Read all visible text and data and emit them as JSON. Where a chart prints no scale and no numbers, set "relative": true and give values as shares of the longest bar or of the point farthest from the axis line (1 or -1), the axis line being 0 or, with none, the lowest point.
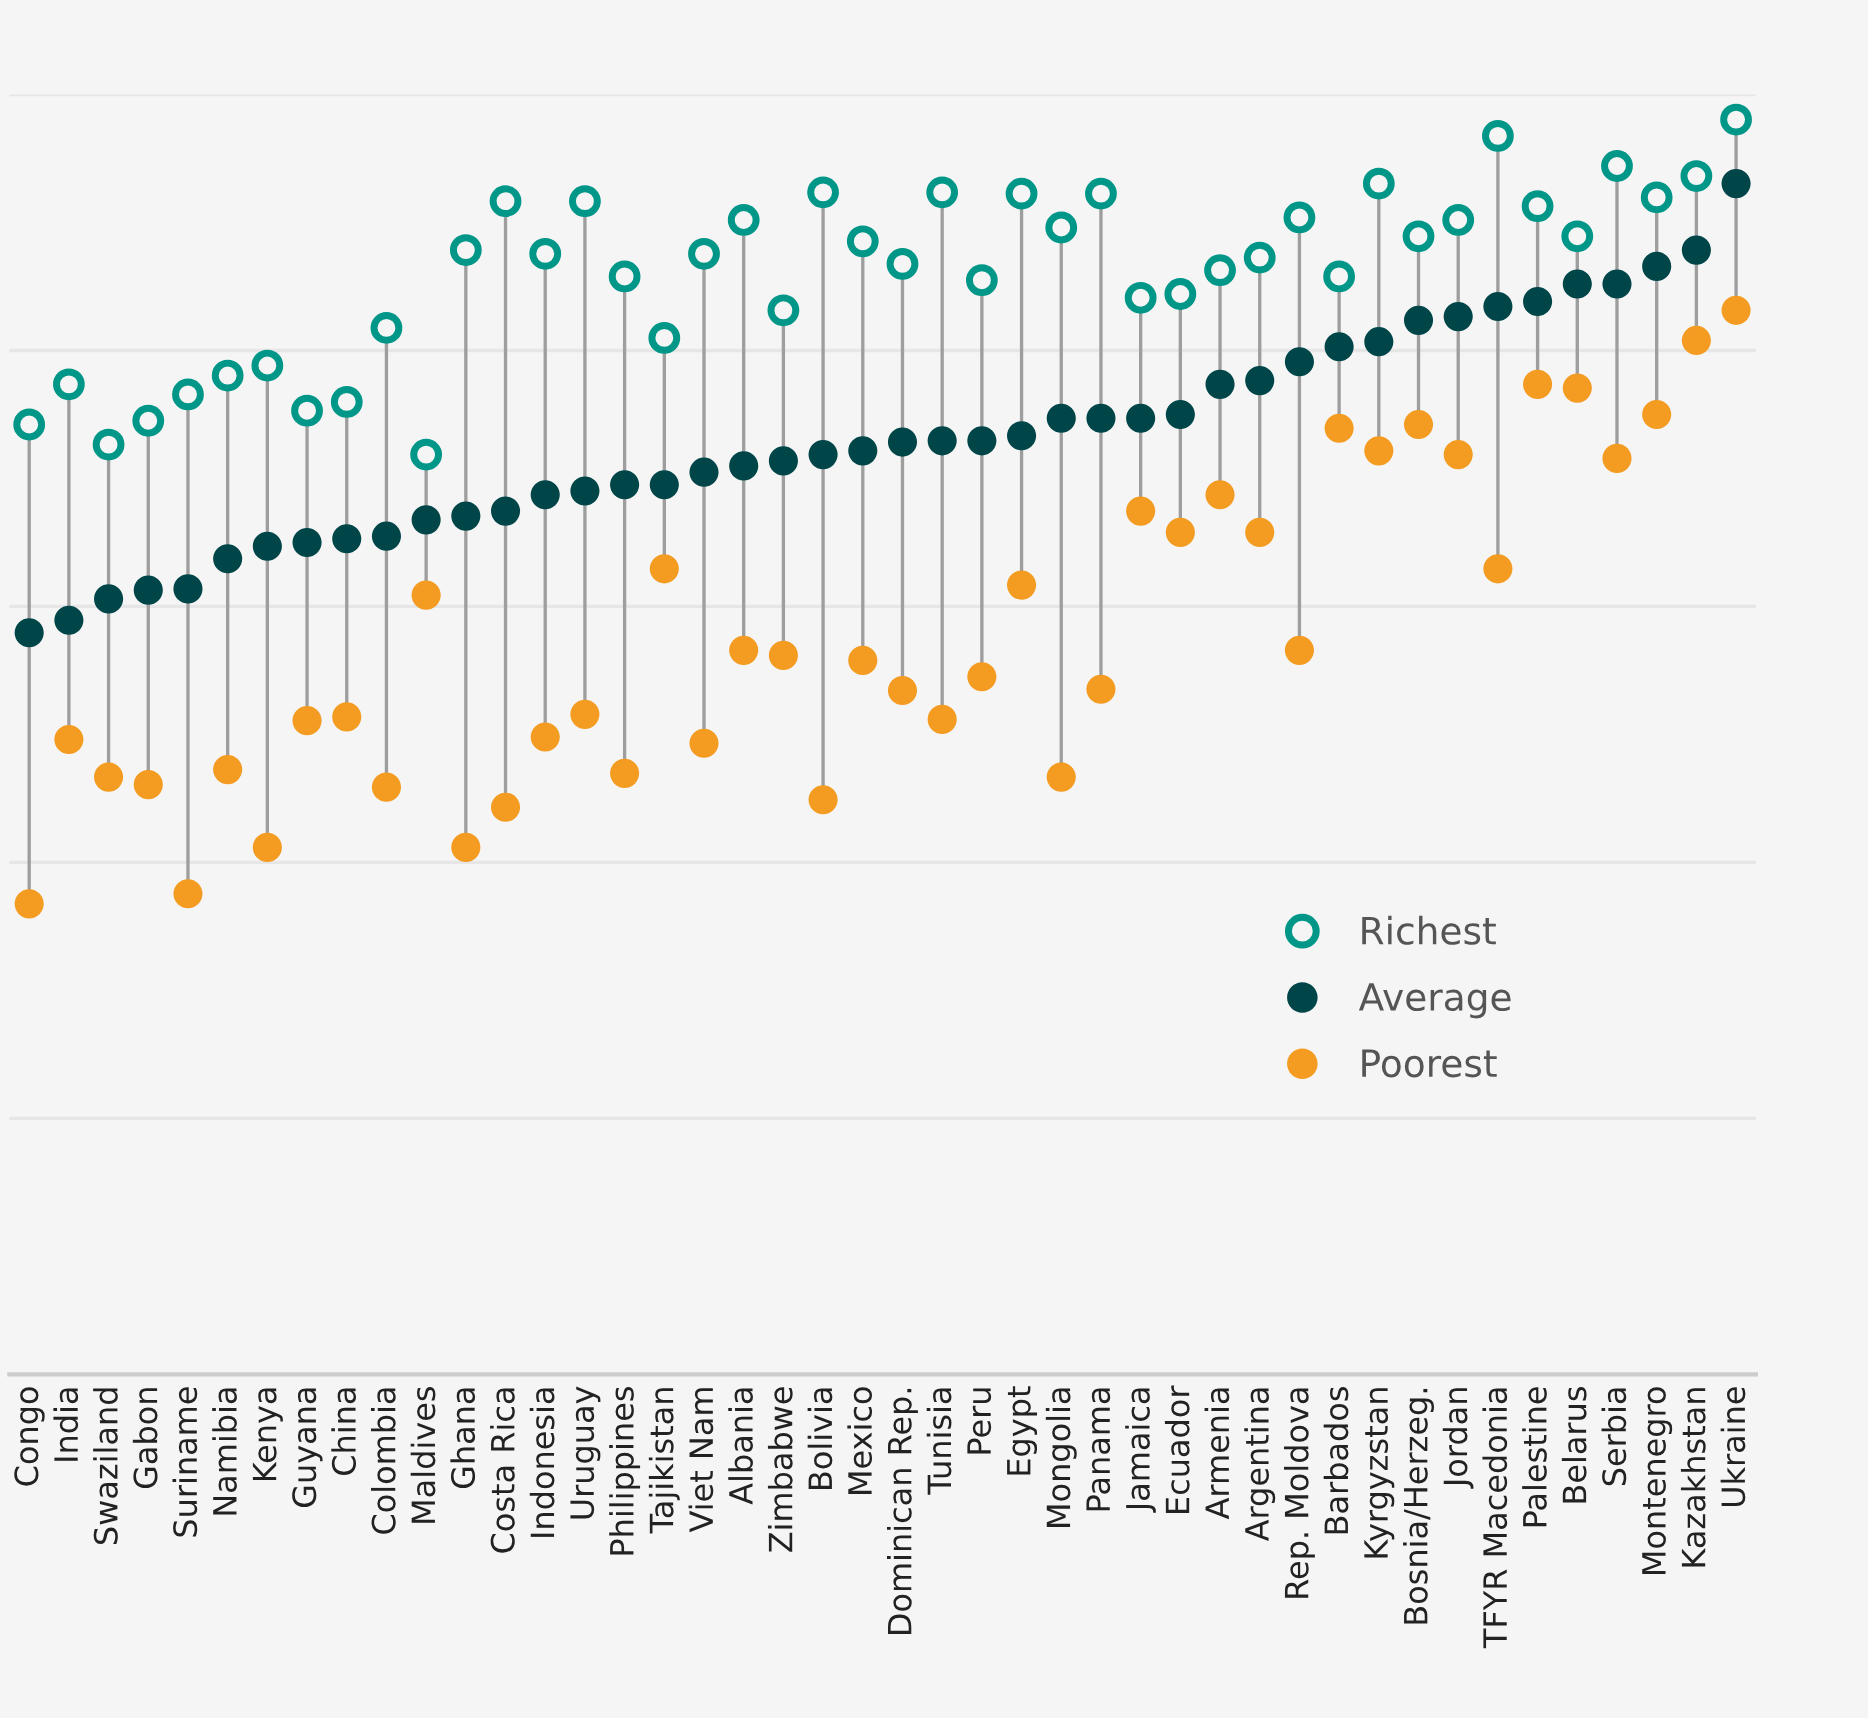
{
  "chart_data": {
    "type": "scatter",
    "relative": true,
    "marker": "circle",
    "grid": "y",
    "legend": "lower right",
    "categories": [
      "Congo",
      "India",
      "Swaziland",
      "Gabon",
      "Suriname",
      "Namibia",
      "Kenya",
      "Guyana",
      "China",
      "Colombia",
      "Maldives",
      "Ghana",
      "Costa Rica",
      "Indonesia",
      "Uruguay",
      "Philippines",
      "Tajikistan",
      "Viet Nam",
      "Albania",
      "Zimbabwe",
      "Bolivia",
      "Mexico",
      "Dominican Rep.",
      "Tunisia",
      "Peru",
      "Egypt",
      "Mongolia",
      "Panama",
      "Jamaica",
      "Ecuador",
      "Armenia",
      "Argentina",
      "Rep. Moldova",
      "Barbados",
      "Kyrgyzstan",
      "Bosnia/Herzeg.",
      "Jordan",
      "TFYR Macedonia",
      "Palestine",
      "Belarus",
      "Serbia",
      "Montenegro",
      "Kazakhstan",
      "Ukraine"
    ],
    "series": [
      {
        "name": "Richest",
        "color": "#009688",
        "values": [
          0.757,
          0.789,
          0.741,
          0.76,
          0.781,
          0.796,
          0.804,
          0.768,
          0.775,
          0.834,
          0.733,
          0.896,
          0.935,
          0.893,
          0.935,
          0.875,
          0.826,
          0.893,
          0.92,
          0.848,
          0.942,
          0.903,
          0.885,
          0.942,
          0.872,
          0.941,
          0.914,
          0.941,
          0.858,
          0.861,
          0.88,
          0.89,
          0.922,
          0.875,
          0.949,
          0.907,
          0.92,
          0.987,
          0.931,
          0.907,
          0.963,
          0.938,
          0.955,
          1
        ]
      },
      {
        "name": "Average",
        "color": "#004548",
        "values": [
          0.591,
          0.601,
          0.618,
          0.625,
          0.626,
          0.65,
          0.66,
          0.663,
          0.666,
          0.668,
          0.681,
          0.684,
          0.688,
          0.701,
          0.704,
          0.709,
          0.709,
          0.719,
          0.724,
          0.728,
          0.733,
          0.736,
          0.743,
          0.744,
          0.744,
          0.748,
          0.762,
          0.762,
          0.762,
          0.765,
          0.789,
          0.792,
          0.807,
          0.819,
          0.823,
          0.84,
          0.843,
          0.851,
          0.855,
          0.869,
          0.869,
          0.883,
          0.896,
          0.949
        ]
      },
      {
        "name": "Poorest",
        "color": "#f39c21",
        "values": [
          0.375,
          0.506,
          0.476,
          0.47,
          0.383,
          0.482,
          0.42,
          0.521,
          0.524,
          0.468,
          0.621,
          0.42,
          0.452,
          0.508,
          0.526,
          0.479,
          0.642,
          0.503,
          0.577,
          0.573,
          0.458,
          0.569,
          0.545,
          0.522,
          0.556,
          0.629,
          0.476,
          0.546,
          0.688,
          0.671,
          0.701,
          0.671,
          0.577,
          0.754,
          0.736,
          0.757,
          0.733,
          0.642,
          0.789,
          0.786,
          0.73,
          0.765,
          0.824,
          0.848
        ]
      }
    ]
  }
}
